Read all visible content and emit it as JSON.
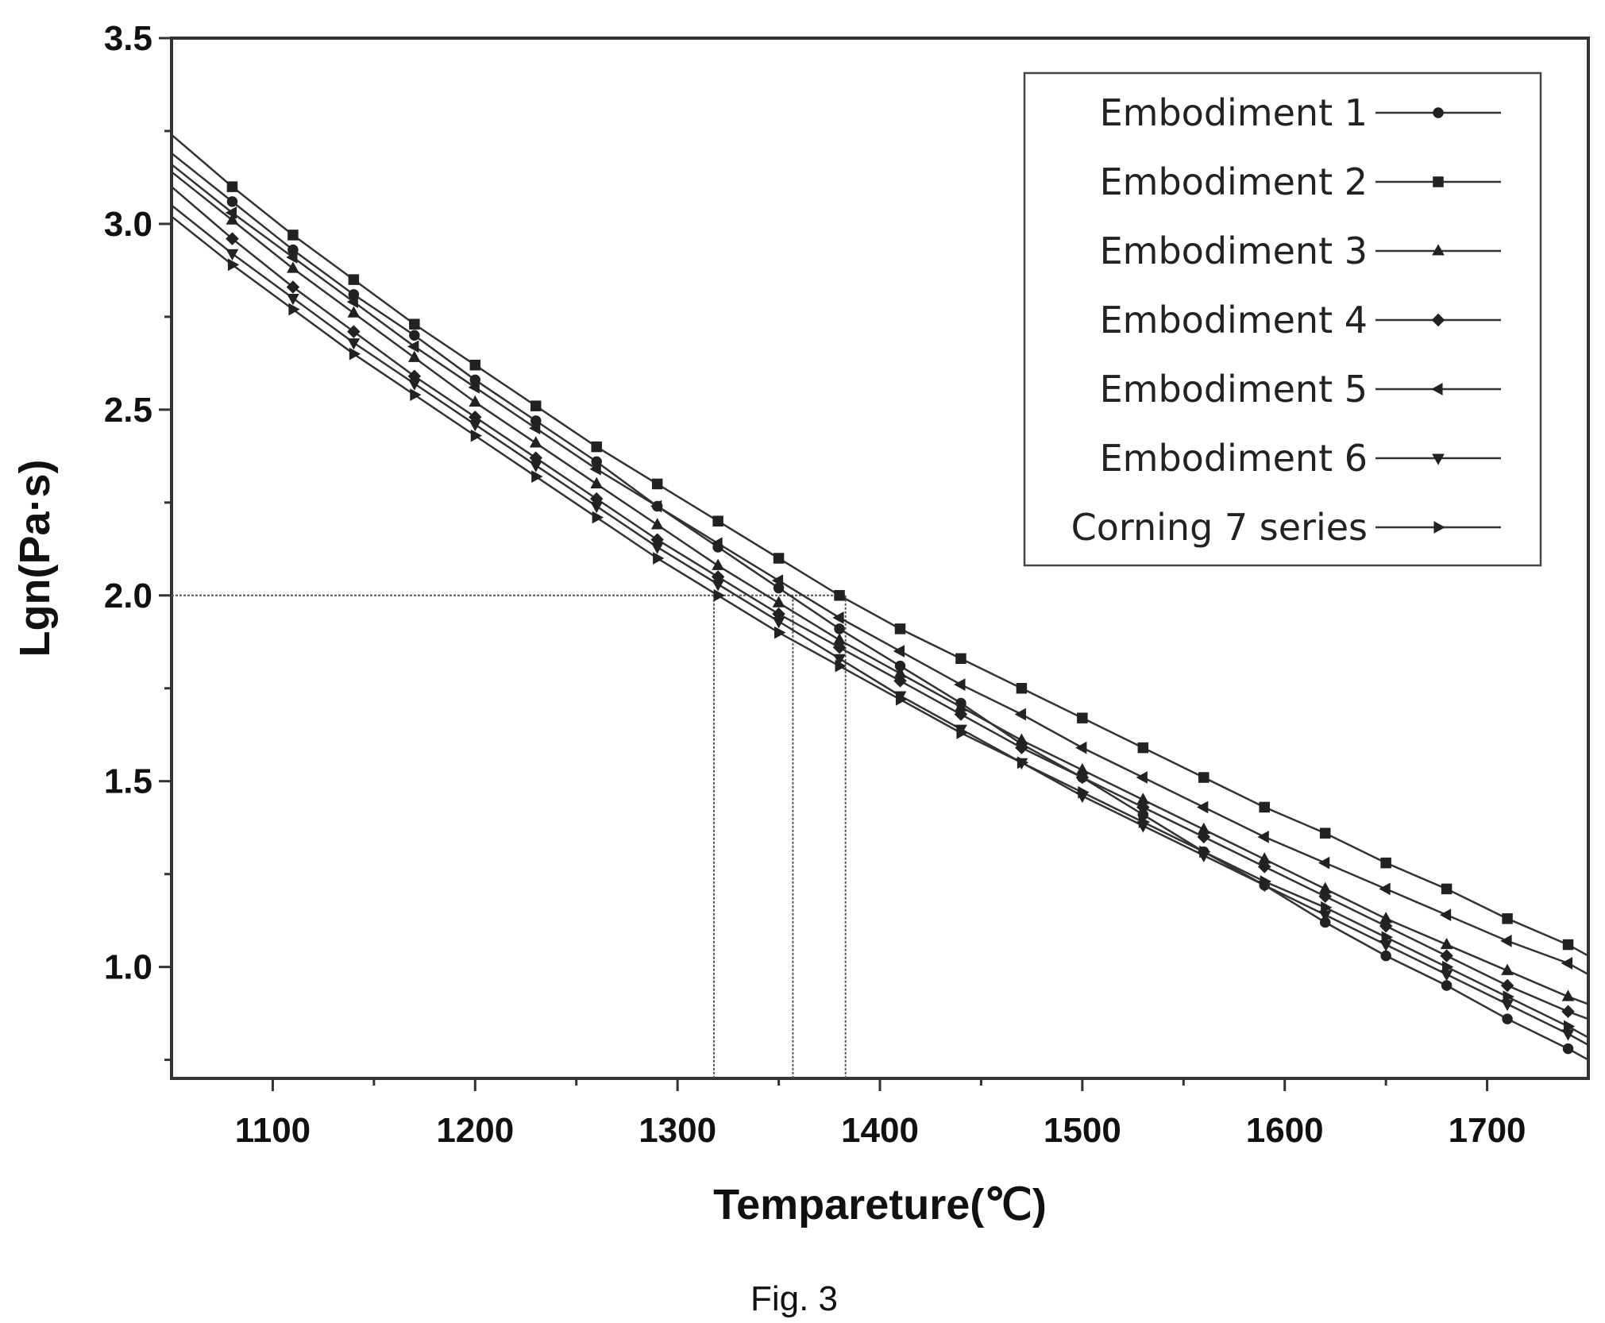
{
  "figure": {
    "caption": "Fig. 3"
  },
  "chart_data": {
    "type": "line",
    "xlabel": "Tempareture(℃)",
    "ylabel": "Lgn(Pa·s)",
    "xlim": [
      1050,
      1750
    ],
    "ylim": [
      0.7,
      3.5
    ],
    "xticks": [
      1100,
      1200,
      1300,
      1400,
      1500,
      1600,
      1700
    ],
    "yticks": [
      1.0,
      1.5,
      2.0,
      2.5,
      3.0,
      3.5
    ],
    "xtick_labels": [
      "1100",
      "1200",
      "1300",
      "1400",
      "1500",
      "1600",
      "1700"
    ],
    "ytick_labels": [
      "1.0",
      "1.5",
      "2.0",
      "2.5",
      "3.0",
      "3.5"
    ],
    "grid": false,
    "legend_position": "top-right",
    "reference_lines": {
      "y": 2.0,
      "x_values": [
        1318,
        1357,
        1383
      ]
    },
    "x": [
      1050,
      1080,
      1110,
      1140,
      1170,
      1200,
      1230,
      1260,
      1290,
      1320,
      1350,
      1380,
      1410,
      1440,
      1470,
      1500,
      1530,
      1560,
      1590,
      1620,
      1650,
      1680,
      1710,
      1740,
      1750
    ],
    "series": [
      {
        "name": "Embodiment 1",
        "marker": "circle",
        "values": [
          3.19,
          3.06,
          2.93,
          2.81,
          2.7,
          2.58,
          2.47,
          2.36,
          2.24,
          2.13,
          2.02,
          1.91,
          1.81,
          1.71,
          1.6,
          1.51,
          1.41,
          1.31,
          1.22,
          1.12,
          1.03,
          0.95,
          0.86,
          0.78,
          0.75
        ]
      },
      {
        "name": "Embodiment 2",
        "marker": "square",
        "values": [
          3.24,
          3.1,
          2.97,
          2.85,
          2.73,
          2.62,
          2.51,
          2.4,
          2.3,
          2.2,
          2.1,
          2.0,
          1.91,
          1.83,
          1.75,
          1.67,
          1.59,
          1.51,
          1.43,
          1.36,
          1.28,
          1.21,
          1.13,
          1.06,
          1.03
        ]
      },
      {
        "name": "Embodiment 3",
        "marker": "triangle-up",
        "values": [
          3.14,
          3.01,
          2.88,
          2.76,
          2.64,
          2.52,
          2.41,
          2.3,
          2.19,
          2.08,
          1.98,
          1.88,
          1.79,
          1.7,
          1.61,
          1.53,
          1.45,
          1.37,
          1.29,
          1.21,
          1.13,
          1.06,
          0.99,
          0.92,
          0.9
        ]
      },
      {
        "name": "Embodiment 4",
        "marker": "diamond",
        "values": [
          3.1,
          2.96,
          2.83,
          2.71,
          2.59,
          2.48,
          2.37,
          2.26,
          2.15,
          2.05,
          1.95,
          1.86,
          1.77,
          1.68,
          1.59,
          1.51,
          1.43,
          1.35,
          1.27,
          1.19,
          1.11,
          1.03,
          0.95,
          0.88,
          0.86
        ]
      },
      {
        "name": "Embodiment 5",
        "marker": "triangle-left",
        "values": [
          3.16,
          3.03,
          2.91,
          2.79,
          2.67,
          2.56,
          2.45,
          2.34,
          2.24,
          2.14,
          2.04,
          1.94,
          1.85,
          1.76,
          1.68,
          1.59,
          1.51,
          1.43,
          1.35,
          1.28,
          1.21,
          1.14,
          1.07,
          1.01,
          0.98
        ]
      },
      {
        "name": "Embodiment 6",
        "marker": "triangle-down",
        "values": [
          3.05,
          2.92,
          2.8,
          2.68,
          2.57,
          2.46,
          2.35,
          2.24,
          2.13,
          2.03,
          1.93,
          1.83,
          1.73,
          1.64,
          1.55,
          1.46,
          1.38,
          1.3,
          1.22,
          1.14,
          1.06,
          0.98,
          0.9,
          0.82,
          0.79
        ]
      },
      {
        "name": "Corning 7 series",
        "marker": "triangle-right",
        "values": [
          3.02,
          2.89,
          2.77,
          2.65,
          2.54,
          2.43,
          2.32,
          2.21,
          2.1,
          2.0,
          1.9,
          1.81,
          1.72,
          1.63,
          1.55,
          1.47,
          1.39,
          1.31,
          1.23,
          1.16,
          1.08,
          1.0,
          0.92,
          0.84,
          0.81
        ]
      }
    ]
  }
}
